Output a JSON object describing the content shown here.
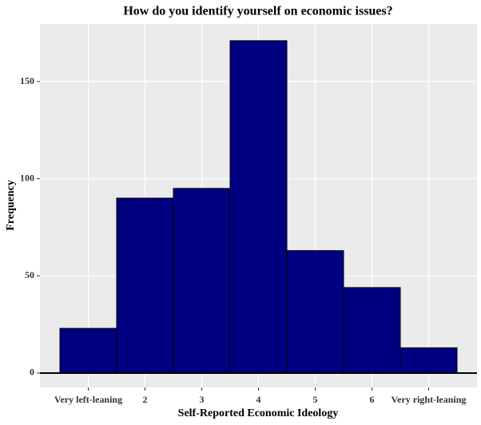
{
  "chart_data": {
    "type": "bar",
    "title": "How do you identify yourself on economic issues?",
    "x_label": "Self-Reported Economic Ideology",
    "y_label": "Frequency",
    "categories": [
      "Very left-leaning",
      "2",
      "3",
      "4",
      "5",
      "6",
      "Very right-leaning"
    ],
    "values": [
      23,
      90,
      95,
      171,
      63,
      44,
      13
    ],
    "color": "#000080",
    "ylim": [
      -7.4,
      179.6
    ],
    "yticks": [
      0,
      50,
      100,
      150
    ],
    "grid": true,
    "hline": 0
  }
}
